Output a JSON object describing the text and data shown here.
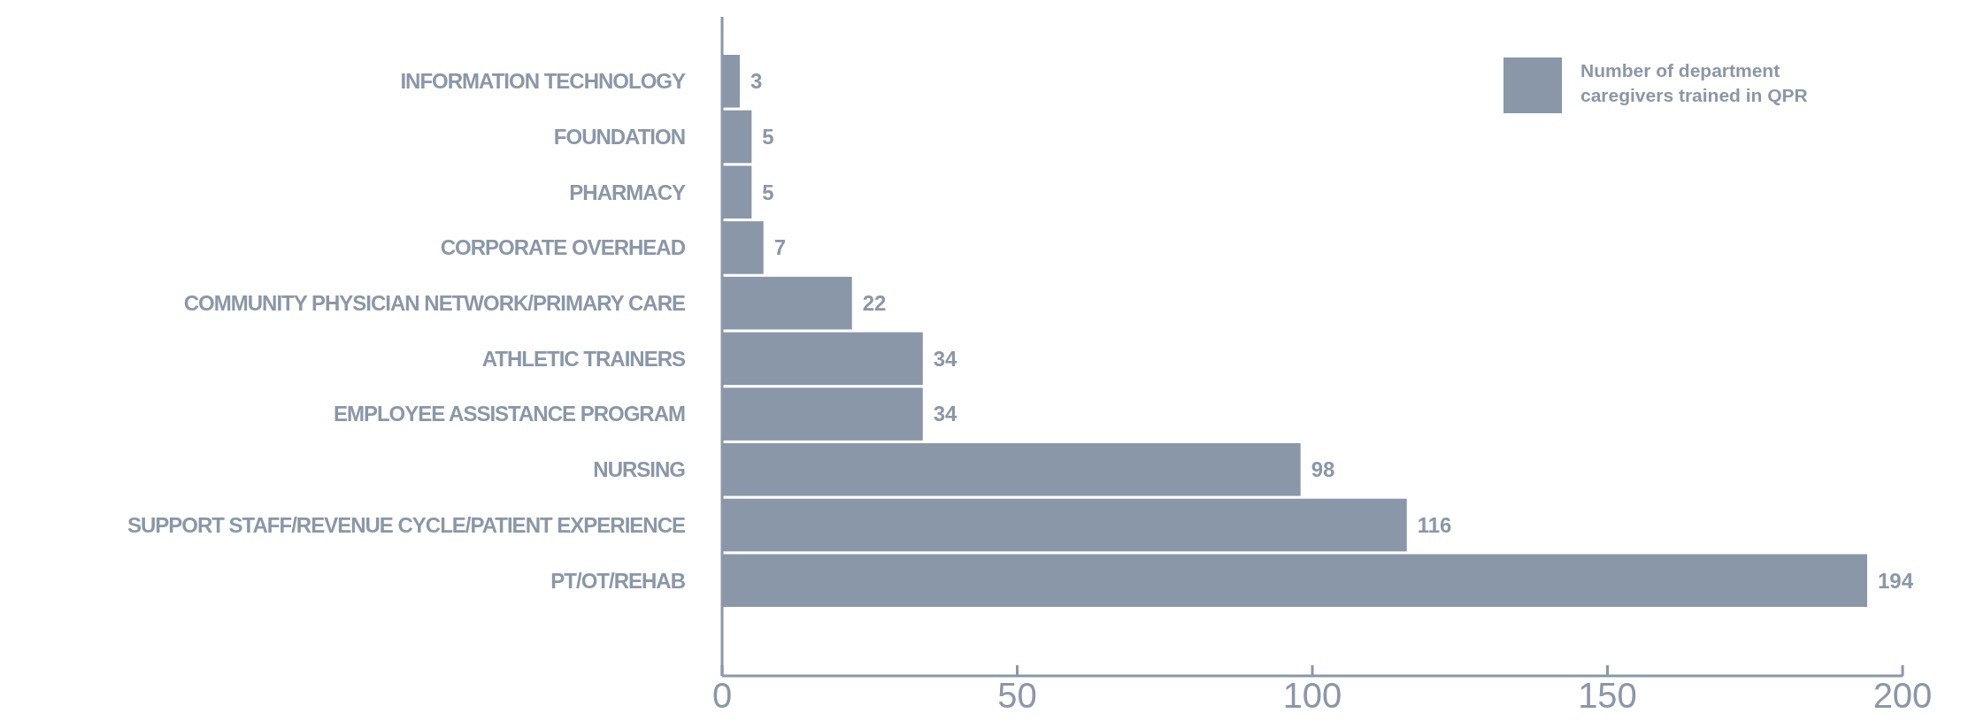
{
  "chart_data": {
    "type": "bar",
    "orientation": "horizontal",
    "categories": [
      "INFORMATION TECHNOLOGY",
      "FOUNDATION",
      "PHARMACY",
      "CORPORATE OVERHEAD",
      "COMMUNITY PHYSICIAN NETWORK/PRIMARY CARE",
      "ATHLETIC TRAINERS",
      "EMPLOYEE ASSISTANCE PROGRAM",
      "NURSING",
      "SUPPORT STAFF/REVENUE CYCLE/PATIENT EXPERIENCE",
      "PT/OT/REHAB"
    ],
    "series": [
      {
        "name": "Number of department caregivers trained in QPR",
        "color": "#8a97a8",
        "values": [
          3,
          5,
          5,
          7,
          22,
          34,
          34,
          98,
          116,
          194
        ]
      }
    ],
    "xlim": [
      0,
      200
    ],
    "xticks": [
      0,
      50,
      100,
      150,
      200
    ],
    "data_labels": true,
    "legend": "top right"
  }
}
